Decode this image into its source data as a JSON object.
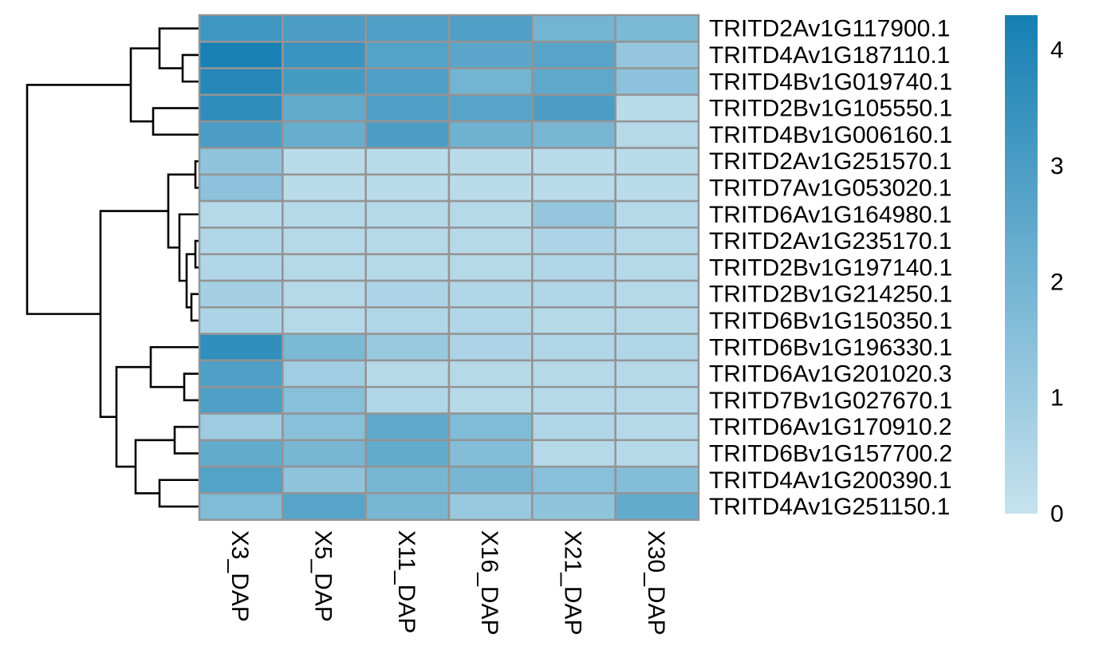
{
  "chart_data": {
    "type": "heatmap",
    "columns": [
      "X3_DAP",
      "X5_DAP",
      "X11_DAP",
      "X16_DAP",
      "X21_DAP",
      "X30_DAP"
    ],
    "rows": [
      "TRITD2Av1G117900.1",
      "TRITD4Av1G187110.1",
      "TRITD4Bv1G019740.1",
      "TRITD2Bv1G105550.1",
      "TRITD4Bv1G006160.1",
      "TRITD2Av1G251570.1",
      "TRITD7Av1G053020.1",
      "TRITD6Av1G164980.1",
      "TRITD2Av1G235170.1",
      "TRITD2Bv1G197140.1",
      "TRITD2Bv1G214250.1",
      "TRITD6Bv1G150350.1",
      "TRITD6Bv1G196330.1",
      "TRITD6Av1G201020.3",
      "TRITD7Bv1G027670.1",
      "TRITD6Av1G170910.2",
      "TRITD6Bv1G157700.2",
      "TRITD4Av1G200390.1",
      "TRITD4Av1G251150.1"
    ],
    "values": [
      [
        3.3,
        3.0,
        2.9,
        2.9,
        2.0,
        1.8
      ],
      [
        4.2,
        3.4,
        2.8,
        2.6,
        2.7,
        1.2
      ],
      [
        3.9,
        3.1,
        2.9,
        2.0,
        2.5,
        1.4
      ],
      [
        3.7,
        2.4,
        2.9,
        2.7,
        3.0,
        0.3
      ],
      [
        3.0,
        2.3,
        3.0,
        2.1,
        1.9,
        0.4
      ],
      [
        1.3,
        0.3,
        0.3,
        0.3,
        0.3,
        0.3
      ],
      [
        1.4,
        0.3,
        0.3,
        0.3,
        0.3,
        0.3
      ],
      [
        0.4,
        0.4,
        0.4,
        0.4,
        1.2,
        0.4
      ],
      [
        0.5,
        0.4,
        0.4,
        0.4,
        0.6,
        0.4
      ],
      [
        0.5,
        0.4,
        0.4,
        0.4,
        0.5,
        0.4
      ],
      [
        0.8,
        0.4,
        0.6,
        0.5,
        0.5,
        0.4
      ],
      [
        0.6,
        0.4,
        0.5,
        0.5,
        0.4,
        0.4
      ],
      [
        3.6,
        1.8,
        1.1,
        0.6,
        0.5,
        0.5
      ],
      [
        2.9,
        0.9,
        0.4,
        0.4,
        0.4,
        0.4
      ],
      [
        2.9,
        1.5,
        0.5,
        0.4,
        0.4,
        0.4
      ],
      [
        1.0,
        1.5,
        2.5,
        1.7,
        0.5,
        0.4
      ],
      [
        2.4,
        1.9,
        2.4,
        1.6,
        0.4,
        0.4
      ],
      [
        2.8,
        1.3,
        1.9,
        1.9,
        1.5,
        1.6
      ],
      [
        1.7,
        2.7,
        1.9,
        1.1,
        1.3,
        2.4
      ]
    ],
    "color_scale": {
      "min": 0,
      "max": 4.3,
      "low_color": "#c6e2ee",
      "high_color": "#157fb3",
      "ticks": [
        0,
        1,
        2,
        3,
        4
      ]
    },
    "cell_border_color": "#949494",
    "dendrogram_color": "#000000",
    "legend_placement": "right"
  }
}
